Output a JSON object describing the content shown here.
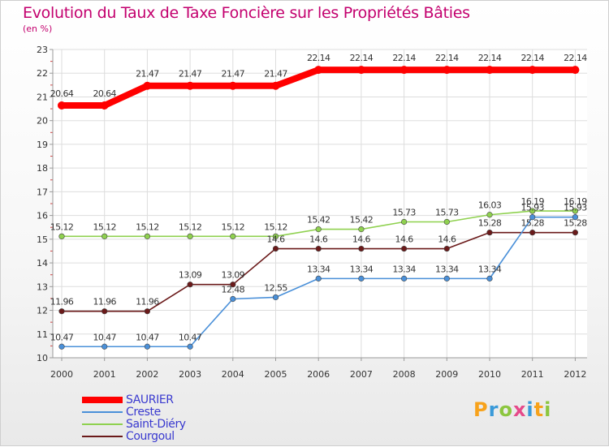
{
  "chart_data": {
    "type": "line",
    "title": "Evolution du Taux de Taxe Foncière sur les Propriétés Bâties",
    "ylabel": "(en %)",
    "xlabel": "",
    "categories": [
      "2000",
      "2001",
      "2002",
      "2003",
      "2004",
      "2005",
      "2006",
      "2007",
      "2008",
      "2009",
      "2010",
      "2011",
      "2012"
    ],
    "yticks": [
      "10",
      "11",
      "12",
      "13",
      "14",
      "15",
      "16",
      "17",
      "18",
      "19",
      "20",
      "21",
      "22",
      "23"
    ],
    "ylim": [
      10,
      23
    ],
    "grid": true,
    "series": [
      {
        "name": "SAURIER",
        "color": "#ff0000",
        "values": [
          20.64,
          20.64,
          21.47,
          21.47,
          21.47,
          21.47,
          22.14,
          22.14,
          22.14,
          22.14,
          22.14,
          22.14,
          22.14
        ],
        "labels": [
          "20.64",
          "20.64",
          "21.47",
          "21.47",
          "21.47",
          "21.47",
          "22.14",
          "22.14",
          "22.14",
          "22.14",
          "22.14",
          "22.14",
          "22.14"
        ]
      },
      {
        "name": "Creste",
        "color": "#4a90d9",
        "values": [
          10.47,
          10.47,
          10.47,
          10.47,
          12.48,
          12.55,
          13.34,
          13.34,
          13.34,
          13.34,
          13.34,
          15.93,
          15.93
        ],
        "labels": [
          "10.47",
          "10.47",
          "10.47",
          "10.47",
          "12.48",
          "12.55",
          "13.34",
          "13.34",
          "13.34",
          "13.34",
          "13.34",
          "15.93",
          "15.93"
        ]
      },
      {
        "name": "Saint-Diéry",
        "color": "#8fd14f",
        "values": [
          15.12,
          15.12,
          15.12,
          15.12,
          15.12,
          15.12,
          15.42,
          15.42,
          15.73,
          15.73,
          16.03,
          16.19,
          16.19
        ],
        "labels": [
          "15.12",
          "15.12",
          "15.12",
          "15.12",
          "15.12",
          "15.12",
          "15.42",
          "15.42",
          "15.73",
          "15.73",
          "16.03",
          "16.19",
          "16.19"
        ]
      },
      {
        "name": "Courgoul",
        "color": "#6b1a1a",
        "values": [
          11.96,
          11.96,
          11.96,
          13.09,
          13.09,
          14.6,
          14.6,
          14.6,
          14.6,
          14.6,
          15.28,
          15.28,
          15.28
        ],
        "labels": [
          "11.96",
          "11.96",
          "11.96",
          "13.09",
          "13.09",
          "14.6",
          "14.6",
          "14.6",
          "14.6",
          "14.6",
          "15.28",
          "15.28",
          "15.28"
        ]
      }
    ],
    "legend_position": "bottom-left"
  },
  "brand": {
    "letters": [
      "P",
      "r",
      "o",
      "x",
      "i",
      "t",
      "i"
    ],
    "colors": [
      "#f7a21b",
      "#3a9ad9",
      "#8cc63f",
      "#e64a8a",
      "#3a9ad9",
      "#f7a21b",
      "#8cc63f"
    ]
  }
}
